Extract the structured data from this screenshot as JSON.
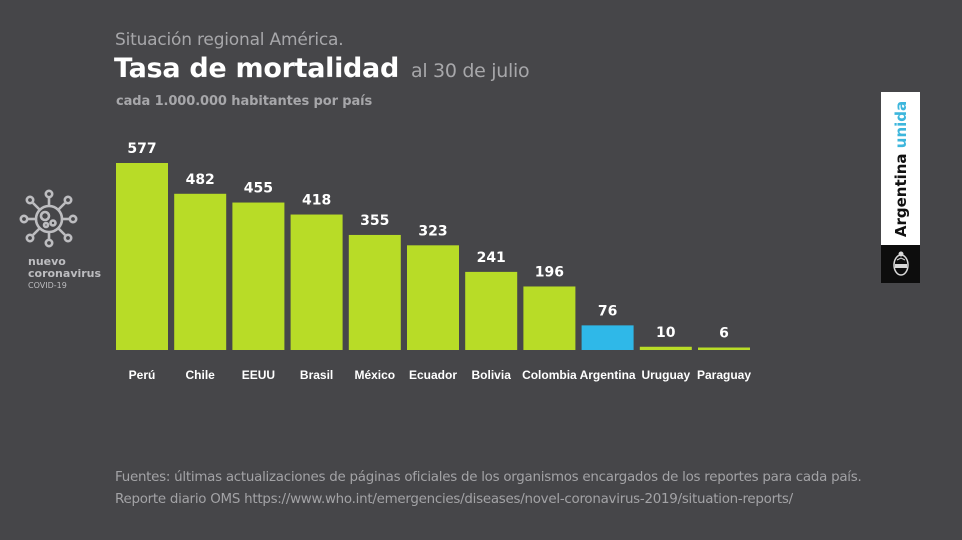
{
  "header": {
    "supertitle": "Situación regional América.",
    "title": "Tasa de mortalidad",
    "date": "al 30 de julio",
    "subtitle": "cada 1.000.000 habitantes por país"
  },
  "logo": {
    "icon": "coronavirus-icon",
    "line1": "nuevo",
    "line2": "coronavirus",
    "line3": "COVID-19"
  },
  "brand": {
    "text_main": "Argentina",
    "text_accent": "unida",
    "accent_color": "#3db6dc",
    "emblem": "coat-of-arms-icon"
  },
  "colors": {
    "bar_default": "#b8dc27",
    "bar_highlight": "#2fb8e8",
    "background": "#464649"
  },
  "chart_data": {
    "type": "bar",
    "title": "Tasa de mortalidad al 30 de julio",
    "subtitle": "cada 1.000.000 habitantes por país",
    "xlabel": "",
    "ylabel": "",
    "ylim": [
      0,
      577
    ],
    "grid": false,
    "legend": "none",
    "categories": [
      "Perú",
      "Chile",
      "EEUU",
      "Brasil",
      "México",
      "Ecuador",
      "Bolivia",
      "Colombia",
      "Argentina",
      "Uruguay",
      "Paraguay"
    ],
    "values": [
      577,
      482,
      455,
      418,
      355,
      323,
      241,
      196,
      76,
      10,
      6
    ],
    "highlight": "Argentina",
    "data_labels": [
      "577",
      "482",
      "455",
      "418",
      "355",
      "323",
      "241",
      "196",
      "76",
      "10",
      "6"
    ]
  },
  "footer": {
    "line1": "Fuentes: últimas actualizaciones de páginas oficiales de los organismos encargados de los reportes para cada país.",
    "line2": "Reporte diario OMS https://www.who.int/emergencies/diseases/novel-coronavirus-2019/situation-reports/"
  }
}
